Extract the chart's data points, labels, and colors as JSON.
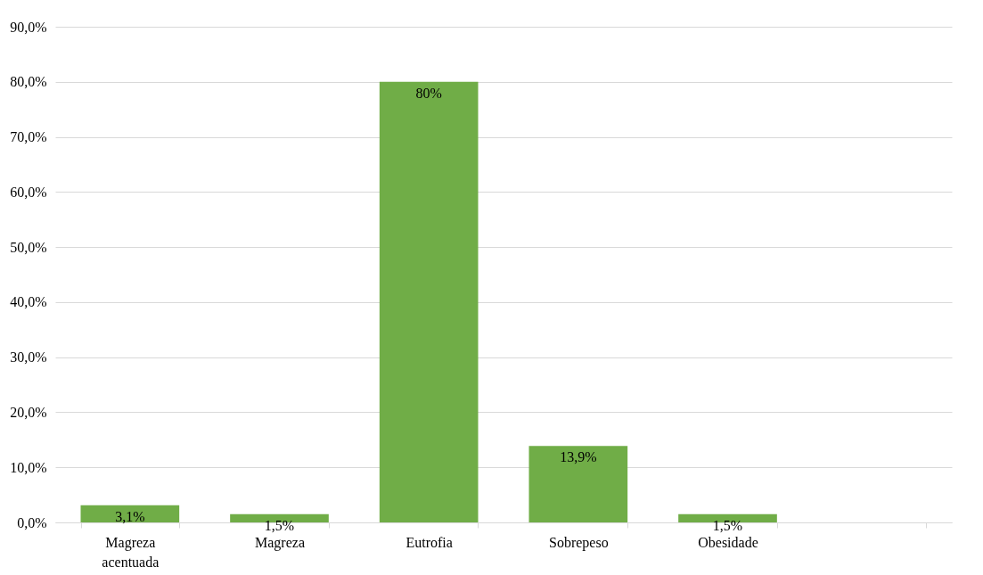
{
  "chart_data": {
    "type": "bar",
    "categories": [
      "Magreza acentuada",
      "Magreza",
      "Eutrofia",
      "Sobrepeso",
      "Obesidade",
      null
    ],
    "values": [
      3.1,
      1.5,
      80,
      13.9,
      1.5,
      null
    ],
    "value_labels": [
      "3,1%",
      "1,5%",
      "80%",
      "13,9%",
      "1,5%",
      null
    ],
    "color": "#70ad47",
    "ylim": [
      0,
      90
    ],
    "yticks": [
      {
        "value": 0,
        "label": "0,0%"
      },
      {
        "value": 10,
        "label": "10,0%"
      },
      {
        "value": 20,
        "label": "20,0%"
      },
      {
        "value": 30,
        "label": "30,0%"
      },
      {
        "value": 40,
        "label": "40,0%"
      },
      {
        "value": 50,
        "label": "50,0%"
      },
      {
        "value": 60,
        "label": "60,0%"
      },
      {
        "value": 70,
        "label": "70,0%"
      },
      {
        "value": 80,
        "label": "80,0%"
      },
      {
        "value": 90,
        "label": "90,0%"
      }
    ],
    "grid": "y"
  }
}
